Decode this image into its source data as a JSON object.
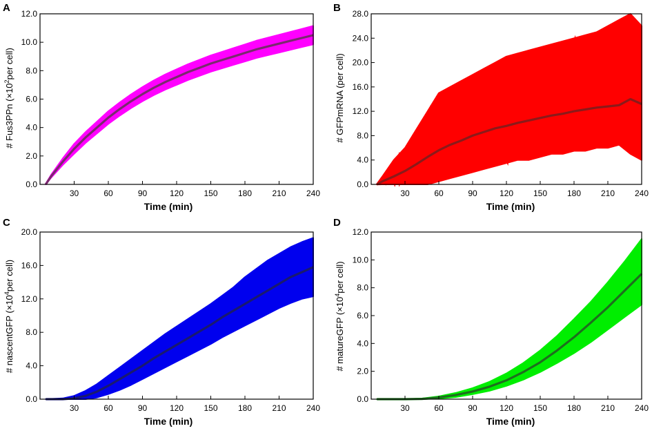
{
  "chart_data": [
    {
      "panel": "A",
      "type": "line",
      "ylabel_prefix": "# Fus3PPn (×10",
      "ylabel_exp": "2",
      "ylabel_suffix": "per cell)",
      "xlabel": "Time (min)",
      "xlim": [
        0,
        240
      ],
      "ylim": [
        0,
        12
      ],
      "xticks": [
        "30",
        "60",
        "90",
        "120",
        "150",
        "180",
        "210",
        "240"
      ],
      "yticks": [
        "0.0",
        "2.0",
        "4.0",
        "6.0",
        "8.0",
        "10.0",
        "12.0"
      ],
      "band_color": "#ff00ff",
      "mean_color": "#7a2a6e",
      "mean": {
        "x": [
          5,
          10,
          20,
          30,
          40,
          50,
          60,
          70,
          80,
          90,
          100,
          110,
          120,
          130,
          140,
          150,
          160,
          170,
          180,
          190,
          200,
          210,
          220,
          230,
          240
        ],
        "y": [
          0,
          0.6,
          1.6,
          2.5,
          3.3,
          4.0,
          4.7,
          5.3,
          5.85,
          6.35,
          6.8,
          7.2,
          7.55,
          7.9,
          8.2,
          8.5,
          8.75,
          9.0,
          9.25,
          9.5,
          9.7,
          9.9,
          10.1,
          10.3,
          10.5
        ]
      },
      "band_halfwidth": {
        "x": [
          5,
          30,
          60,
          120,
          180,
          240
        ],
        "y": [
          0.05,
          0.35,
          0.45,
          0.55,
          0.6,
          0.65
        ]
      }
    },
    {
      "panel": "B",
      "type": "line",
      "ylabel_prefix": "# GFPmRNA (per cell)",
      "ylabel_exp": "",
      "ylabel_suffix": "",
      "xlabel": "Time (min)",
      "xlim": [
        0,
        240
      ],
      "ylim": [
        0,
        28
      ],
      "xticks": [
        "30",
        "60",
        "90",
        "120",
        "150",
        "180",
        "210",
        "240"
      ],
      "yticks": [
        "0.0",
        "4.0",
        "8.0",
        "12.0",
        "16.0",
        "20.0",
        "24.0",
        "28.0"
      ],
      "band_color": "#ff0000",
      "mean_color": "#8b1a1a",
      "mean": {
        "x": [
          5,
          10,
          20,
          30,
          40,
          50,
          60,
          70,
          80,
          90,
          100,
          110,
          120,
          130,
          140,
          150,
          160,
          170,
          180,
          190,
          200,
          210,
          220,
          230,
          240
        ],
        "y": [
          0,
          0.5,
          1.3,
          2.2,
          3.3,
          4.5,
          5.6,
          6.5,
          7.2,
          8.0,
          8.6,
          9.2,
          9.6,
          10.1,
          10.5,
          10.9,
          11.3,
          11.6,
          12.0,
          12.3,
          12.6,
          12.8,
          13.0,
          14.0,
          13.2
        ]
      },
      "band_upper": {
        "x": [
          5,
          20,
          30,
          40,
          50,
          60,
          70,
          80,
          90,
          100,
          110,
          120,
          130,
          140,
          150,
          160,
          170,
          180,
          190,
          200,
          210,
          220,
          230,
          240
        ],
        "y": [
          0,
          4,
          6,
          9,
          12,
          15,
          16,
          17,
          18,
          19,
          20,
          21,
          21.5,
          22,
          22.5,
          23,
          23.5,
          24,
          24.5,
          25,
          26,
          27,
          28,
          26
        ]
      },
      "band_lower": {
        "x": [
          5,
          20,
          30,
          40,
          50,
          60,
          70,
          80,
          90,
          100,
          110,
          120,
          130,
          140,
          150,
          160,
          170,
          180,
          190,
          200,
          210,
          220,
          230,
          240
        ],
        "y": [
          0,
          0,
          0,
          0,
          0,
          0.5,
          1,
          1.5,
          2,
          2.5,
          3,
          3.5,
          4,
          4,
          4.5,
          5,
          5,
          5.5,
          5.5,
          6,
          6,
          6.5,
          5,
          4
        ]
      }
    },
    {
      "panel": "C",
      "type": "line",
      "ylabel_prefix": "# nascentGFP (×10",
      "ylabel_exp": "4",
      "ylabel_suffix": "per cell)",
      "xlabel": "Time (min)",
      "xlim": [
        0,
        240
      ],
      "ylim": [
        0,
        20
      ],
      "xticks": [
        "30",
        "60",
        "90",
        "120",
        "150",
        "180",
        "210",
        "240"
      ],
      "yticks": [
        "0.0",
        "4.0",
        "8.0",
        "12.0",
        "16.0",
        "20.0"
      ],
      "band_color": "#0000ee",
      "mean_color": "#1a1a6e",
      "mean": {
        "x": [
          5,
          20,
          30,
          40,
          50,
          60,
          70,
          80,
          90,
          100,
          110,
          120,
          130,
          140,
          150,
          160,
          170,
          180,
          190,
          200,
          210,
          220,
          230,
          240
        ],
        "y": [
          0,
          0,
          0.1,
          0.4,
          0.9,
          1.6,
          2.4,
          3.2,
          4.0,
          4.9,
          5.7,
          6.5,
          7.3,
          8.1,
          8.9,
          9.8,
          10.6,
          11.4,
          12.2,
          13.0,
          13.8,
          14.6,
          15.2,
          15.8
        ]
      },
      "band_upper": {
        "x": [
          5,
          20,
          30,
          40,
          50,
          60,
          70,
          80,
          90,
          100,
          110,
          120,
          130,
          140,
          150,
          160,
          170,
          180,
          190,
          200,
          210,
          220,
          230,
          240
        ],
        "y": [
          0,
          0.1,
          0.4,
          1.0,
          1.8,
          2.8,
          3.8,
          4.8,
          5.8,
          6.8,
          7.8,
          8.7,
          9.6,
          10.5,
          11.4,
          12.4,
          13.4,
          14.6,
          15.6,
          16.6,
          17.4,
          18.2,
          18.8,
          19.3
        ]
      },
      "band_lower": {
        "x": [
          5,
          20,
          30,
          40,
          50,
          60,
          70,
          80,
          90,
          100,
          110,
          120,
          130,
          140,
          150,
          160,
          170,
          180,
          190,
          200,
          210,
          220,
          230,
          240
        ],
        "y": [
          0,
          0,
          0,
          0,
          0.2,
          0.6,
          1.1,
          1.7,
          2.4,
          3.1,
          3.8,
          4.5,
          5.2,
          5.9,
          6.6,
          7.4,
          8.1,
          8.8,
          9.5,
          10.2,
          10.9,
          11.5,
          12.0,
          12.3
        ]
      }
    },
    {
      "panel": "D",
      "type": "line",
      "ylabel_prefix": "# matureGFP (×10",
      "ylabel_exp": "4",
      "ylabel_suffix": "per cell)",
      "xlabel": "Time (min)",
      "xlim": [
        0,
        240
      ],
      "ylim": [
        0,
        12
      ],
      "xticks": [
        "30",
        "60",
        "90",
        "120",
        "150",
        "180",
        "210",
        "240"
      ],
      "yticks": [
        "0.0",
        "2.0",
        "4.0",
        "6.0",
        "8.0",
        "10.0",
        "12.0"
      ],
      "band_color": "#00ee00",
      "mean_color": "#1e6e1e",
      "mean": {
        "x": [
          5,
          30,
          45,
          60,
          75,
          90,
          105,
          120,
          135,
          150,
          165,
          180,
          195,
          210,
          225,
          240
        ],
        "y": [
          0,
          0,
          0.02,
          0.12,
          0.3,
          0.55,
          0.9,
          1.35,
          1.95,
          2.65,
          3.5,
          4.45,
          5.5,
          6.6,
          7.8,
          9.0
        ]
      },
      "band_upper": {
        "x": [
          5,
          30,
          45,
          60,
          75,
          90,
          105,
          120,
          135,
          150,
          165,
          180,
          195,
          210,
          225,
          240
        ],
        "y": [
          0,
          0,
          0.05,
          0.2,
          0.45,
          0.8,
          1.25,
          1.85,
          2.6,
          3.5,
          4.55,
          5.75,
          7.0,
          8.4,
          9.9,
          11.5
        ]
      },
      "band_lower": {
        "x": [
          5,
          30,
          45,
          60,
          75,
          90,
          105,
          120,
          135,
          150,
          165,
          180,
          195,
          210,
          225,
          240
        ],
        "y": [
          0,
          0,
          0,
          0.05,
          0.15,
          0.35,
          0.6,
          0.95,
          1.4,
          1.95,
          2.6,
          3.3,
          4.1,
          5.0,
          5.9,
          6.8
        ]
      }
    }
  ]
}
